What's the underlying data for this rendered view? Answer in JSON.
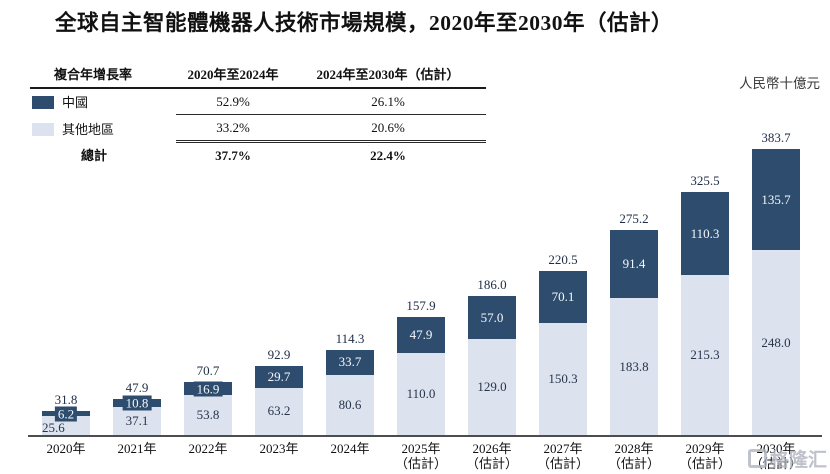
{
  "title": "全球自主智能體機器人技術市場規模，2020年至2030年（估計）",
  "unit_label": "人民幣十億元",
  "watermark_text": "格隆汇",
  "cagr_table": {
    "col_headers": [
      "複合年增長率",
      "2020年至2024年",
      "2024年至2030年（估計）"
    ],
    "rows": [
      {
        "label": "中國",
        "cagr_2020_2024": "52.9%",
        "cagr_2024_2030": "26.1%"
      },
      {
        "label": "其他地區",
        "cagr_2020_2024": "33.2%",
        "cagr_2024_2030": "20.6%"
      },
      {
        "label": "總計",
        "cagr_2020_2024": "37.7%",
        "cagr_2024_2030": "22.4%"
      }
    ]
  },
  "chart_data": {
    "type": "bar",
    "stacked": true,
    "title": "全球自主智能體機器人技術市場規模，2020年至2030年（估計）",
    "ylabel": "人民幣十億元",
    "categories": [
      "2020年",
      "2021年",
      "2022年",
      "2023年",
      "2024年",
      "2025年",
      "2026年",
      "2027年",
      "2028年",
      "2029年",
      "2030年"
    ],
    "category_sublabels": [
      "",
      "",
      "",
      "",
      "",
      "（估計）",
      "（估計）",
      "（估計）",
      "（估計）",
      "（估計）",
      "（估計）"
    ],
    "series": [
      {
        "name": "中國",
        "color": "#2e4d6e",
        "values": [
          6.2,
          10.8,
          16.9,
          29.7,
          33.7,
          47.9,
          57.0,
          70.1,
          91.4,
          110.3,
          135.7
        ]
      },
      {
        "name": "其他地區",
        "color": "#dde3ee",
        "values": [
          25.6,
          37.1,
          53.8,
          63.2,
          80.6,
          110.0,
          129.0,
          150.3,
          183.8,
          215.3,
          248.0
        ]
      }
    ],
    "totals": [
      31.8,
      47.9,
      70.7,
      92.9,
      114.3,
      157.9,
      186.0,
      220.5,
      275.2,
      325.5,
      383.7
    ],
    "ylim": [
      0,
      400
    ],
    "grid": false,
    "legend_position": "top-left table",
    "axis_color": "#4d4d4d"
  }
}
